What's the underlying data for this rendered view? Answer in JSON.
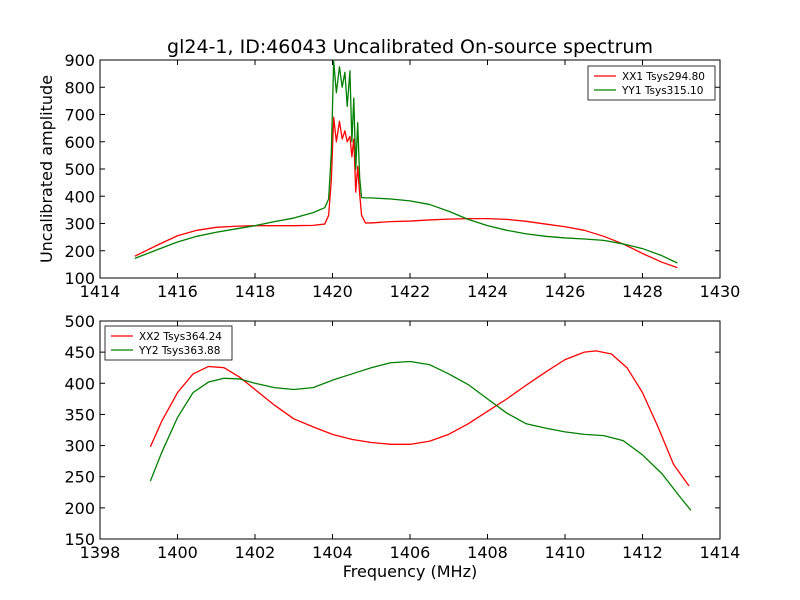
{
  "figure": {
    "title": "gl24-1, ID:46043 Uncalibrated On-source spectrum"
  },
  "chart_data": [
    {
      "type": "line",
      "ylabel": "Uncalibrated amplitude",
      "xlabel": "",
      "xlim": [
        1414,
        1430
      ],
      "ylim": [
        100,
        900
      ],
      "xticks": [
        1414,
        1416,
        1418,
        1420,
        1422,
        1424,
        1426,
        1428,
        1430
      ],
      "yticks": [
        100,
        200,
        300,
        400,
        500,
        600,
        700,
        800,
        900
      ],
      "legend_position": "top-right",
      "series": [
        {
          "name": "XX1 Tsys294.80",
          "color": "#ff0000",
          "x": [
            1414.9,
            1415.5,
            1416.0,
            1416.5,
            1417.0,
            1417.5,
            1418.0,
            1418.5,
            1419.0,
            1419.5,
            1419.8,
            1419.9,
            1419.97,
            1420.03,
            1420.1,
            1420.18,
            1420.25,
            1420.32,
            1420.38,
            1420.45,
            1420.5,
            1420.55,
            1420.6,
            1420.65,
            1420.7,
            1420.75,
            1420.85,
            1421.0,
            1421.5,
            1422.0,
            1422.5,
            1423.0,
            1423.5,
            1424.0,
            1424.5,
            1425.0,
            1425.5,
            1426.0,
            1426.5,
            1427.0,
            1427.5,
            1428.0,
            1428.5,
            1428.9
          ],
          "y": [
            180,
            222,
            255,
            275,
            286,
            290,
            292,
            292,
            292,
            293,
            298,
            330,
            460,
            690,
            600,
            675,
            610,
            640,
            600,
            620,
            545,
            610,
            415,
            510,
            410,
            330,
            302,
            302,
            307,
            309,
            313,
            316,
            318,
            318,
            315,
            308,
            298,
            288,
            275,
            253,
            225,
            190,
            158,
            138
          ]
        },
        {
          "name": "YY1 Tsys315.10",
          "color": "#008000",
          "x": [
            1414.9,
            1415.5,
            1416.0,
            1416.5,
            1417.0,
            1417.5,
            1418.0,
            1418.5,
            1419.0,
            1419.5,
            1419.8,
            1419.9,
            1419.97,
            1420.03,
            1420.1,
            1420.18,
            1420.25,
            1420.32,
            1420.38,
            1420.45,
            1420.5,
            1420.55,
            1420.6,
            1420.65,
            1420.7,
            1420.75,
            1420.85,
            1421.0,
            1421.5,
            1422.0,
            1422.5,
            1423.0,
            1423.5,
            1424.0,
            1424.5,
            1425.0,
            1425.5,
            1426.0,
            1426.5,
            1427.0,
            1427.5,
            1428.0,
            1428.5,
            1428.9
          ],
          "y": [
            172,
            205,
            232,
            253,
            268,
            280,
            292,
            307,
            320,
            340,
            358,
            390,
            560,
            895,
            780,
            875,
            800,
            855,
            730,
            860,
            600,
            760,
            500,
            670,
            470,
            395,
            394,
            394,
            390,
            383,
            370,
            345,
            315,
            292,
            275,
            262,
            253,
            247,
            243,
            238,
            225,
            208,
            182,
            155
          ]
        }
      ]
    },
    {
      "type": "line",
      "ylabel": "",
      "xlabel": "Frequency (MHz)",
      "xlim": [
        1398,
        1414
      ],
      "ylim": [
        150,
        500
      ],
      "xticks": [
        1398,
        1400,
        1402,
        1404,
        1406,
        1408,
        1410,
        1412,
        1414
      ],
      "yticks": [
        150,
        200,
        250,
        300,
        350,
        400,
        450,
        500
      ],
      "legend_position": "top-left",
      "series": [
        {
          "name": "XX2 Tsys364.24",
          "color": "#ff0000",
          "x": [
            1399.3,
            1399.6,
            1400.0,
            1400.4,
            1400.8,
            1401.2,
            1401.6,
            1402.0,
            1402.5,
            1403.0,
            1403.5,
            1404.0,
            1404.5,
            1405.0,
            1405.5,
            1406.0,
            1406.5,
            1407.0,
            1407.5,
            1408.0,
            1408.5,
            1409.0,
            1409.5,
            1410.0,
            1410.5,
            1410.8,
            1411.2,
            1411.6,
            1412.0,
            1412.4,
            1412.8,
            1413.2
          ],
          "y": [
            298,
            340,
            385,
            415,
            427,
            425,
            410,
            390,
            365,
            343,
            330,
            318,
            310,
            305,
            302,
            302,
            307,
            318,
            335,
            355,
            375,
            397,
            418,
            438,
            450,
            452,
            447,
            425,
            385,
            330,
            270,
            235
          ]
        },
        {
          "name": "YY2 Tsys363.88",
          "color": "#008000",
          "x": [
            1399.3,
            1399.6,
            1400.0,
            1400.4,
            1400.8,
            1401.2,
            1401.6,
            1402.0,
            1402.5,
            1403.0,
            1403.5,
            1404.0,
            1404.5,
            1405.0,
            1405.5,
            1406.0,
            1406.5,
            1407.0,
            1407.5,
            1408.0,
            1408.5,
            1409.0,
            1409.5,
            1410.0,
            1410.5,
            1411.0,
            1411.5,
            1412.0,
            1412.5,
            1413.0,
            1413.25
          ],
          "y": [
            243,
            290,
            345,
            385,
            402,
            408,
            407,
            400,
            393,
            390,
            393,
            405,
            415,
            425,
            433,
            435,
            430,
            415,
            398,
            375,
            352,
            335,
            328,
            322,
            318,
            316,
            308,
            285,
            255,
            215,
            196
          ]
        }
      ]
    }
  ]
}
